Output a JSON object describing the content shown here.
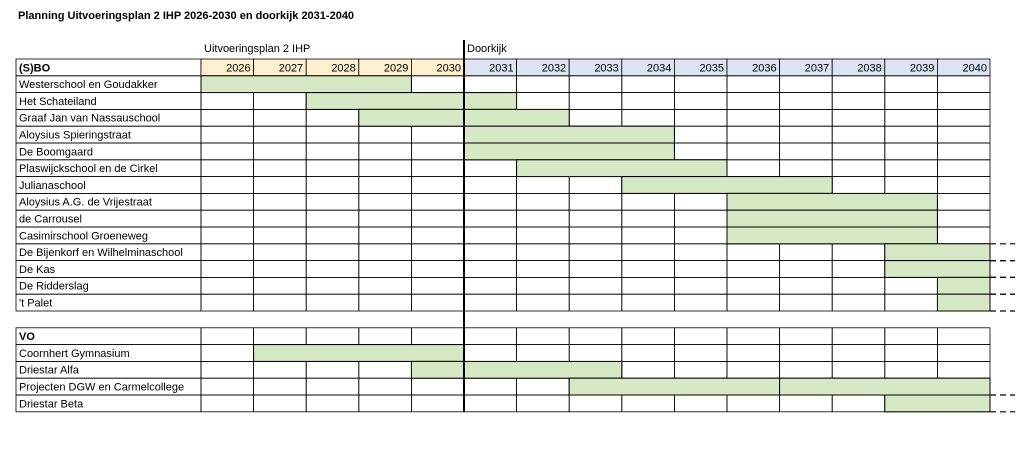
{
  "chart_data": {
    "type": "gantt",
    "title": "Planning Uitvoeringsplan 2 IHP 2026-2030 en doorkijk 2031-2040",
    "years": [
      2026,
      2027,
      2028,
      2029,
      2030,
      2031,
      2032,
      2033,
      2034,
      2035,
      2036,
      2037,
      2038,
      2039,
      2040
    ],
    "phases": [
      {
        "label": "Uitvoeringsplan 2 IHP",
        "start": 2026,
        "color": "#fdf0cf"
      },
      {
        "label": "Doorkijk",
        "start": 2031,
        "color": "#dde3f3"
      }
    ],
    "bar_color": "#d6e9c4",
    "groups": [
      {
        "name": "(S)BO",
        "tasks": [
          {
            "name": "Westerschool en Goudakker",
            "bars": [
              [
                2026,
                2029
              ]
            ]
          },
          {
            "name": "Het Schateiland",
            "bars": [
              [
                2028,
                2031
              ]
            ]
          },
          {
            "name": "Graaf  Jan van Nassauschool",
            "bars": [
              [
                2029,
                2032
              ]
            ]
          },
          {
            "name": "Aloysius Spieringstraat",
            "bars": [
              [
                2031,
                2034
              ]
            ]
          },
          {
            "name": "De Boomgaard",
            "bars": [
              [
                2031,
                2034
              ]
            ]
          },
          {
            "name": "Plaswijckschool en de Cirkel",
            "bars": [
              [
                2032,
                2035
              ]
            ]
          },
          {
            "name": "Julianaschool",
            "bars": [
              [
                2034,
                2037
              ]
            ]
          },
          {
            "name": "Aloysius A.G. de Vrijestraat",
            "bars": [
              [
                2036,
                2039
              ]
            ]
          },
          {
            "name": "de Carrousel",
            "bars": [
              [
                2036,
                2039
              ]
            ]
          },
          {
            "name": "Casimirschool Groeneweg",
            "bars": [
              [
                2036,
                2039
              ]
            ]
          },
          {
            "name": "De Bijenkorf en Wilhelminaschool",
            "bars": [
              [
                2039,
                2040
              ]
            ],
            "continues": true
          },
          {
            "name": "De Kas",
            "bars": [
              [
                2039,
                2040
              ]
            ],
            "continues": true
          },
          {
            "name": "De Ridderslag",
            "bars": [
              [
                2040,
                2040
              ]
            ],
            "continues": true
          },
          {
            "name": "'t Palet",
            "bars": [
              [
                2040,
                2040
              ]
            ],
            "continues": true
          }
        ]
      },
      {
        "name": "VO",
        "tasks": [
          {
            "name": "Coornhert Gymnasium",
            "bars": [
              [
                2027,
                2030
              ]
            ]
          },
          {
            "name": "Driestar Alfa",
            "bars": [
              [
                2030,
                2033
              ]
            ]
          },
          {
            "name": "Projecten DGW en Carmelcollege",
            "bars": [
              [
                2033,
                2036
              ],
              [
                2037,
                2040
              ]
            ]
          },
          {
            "name": "Driestar Beta",
            "bars": [
              [
                2039,
                2040
              ]
            ],
            "continues": true
          }
        ]
      }
    ]
  }
}
